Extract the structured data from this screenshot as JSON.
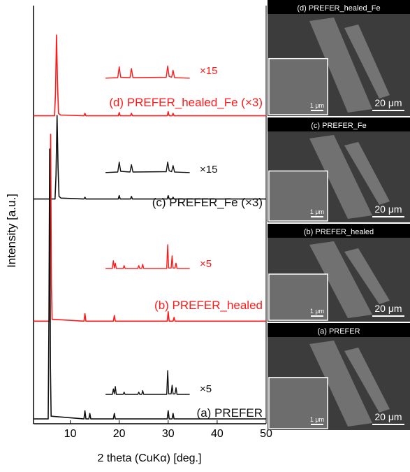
{
  "axes": {
    "xlabel": "2 theta (CuKα) [deg.]",
    "ylabel": "Intensity [a.u.]",
    "xlim": [
      2.5,
      50
    ],
    "xticks": [
      10,
      20,
      30,
      40,
      50
    ]
  },
  "chart_data": [
    {
      "type": "line",
      "name": "(d) PREFER_healed_Fe (×3)",
      "color": "#ff1a1a",
      "ylim": [
        0,
        100
      ],
      "x": [
        2.5,
        6.8,
        7.0,
        7.2,
        7.4,
        7.6,
        8.0,
        12.8,
        13.0,
        13.2,
        19.8,
        20.0,
        20.2,
        22.3,
        22.5,
        22.7,
        29.8,
        30.0,
        30.2,
        30.8,
        31.0,
        31.2,
        50
      ],
      "values": [
        2,
        2,
        30,
        100,
        40,
        5,
        3,
        2,
        5,
        2,
        2,
        6,
        2,
        2,
        5,
        2,
        2,
        7,
        2,
        2,
        5,
        2,
        2
      ],
      "inset": {
        "label": "×15",
        "ylim": [
          0,
          100
        ],
        "x": [
          17.2,
          19.7,
          20.0,
          20.3,
          22.2,
          22.5,
          22.8,
          29.6,
          29.9,
          30.2,
          30.7,
          31.0,
          31.3,
          34.4
        ],
        "values": [
          5,
          8,
          70,
          10,
          8,
          60,
          8,
          10,
          75,
          15,
          10,
          50,
          8,
          5
        ]
      }
    },
    {
      "type": "line",
      "name": "(c) PREFER_Fe (×3)",
      "color": "#111111",
      "ylim": [
        0,
        100
      ],
      "x": [
        2.5,
        6.9,
        7.1,
        7.3,
        7.5,
        7.7,
        8.1,
        12.8,
        13.0,
        13.2,
        19.8,
        20.0,
        20.2,
        22.3,
        22.5,
        22.7,
        29.8,
        30.0,
        30.2,
        30.8,
        31.0,
        31.2,
        50
      ],
      "values": [
        2,
        2,
        30,
        100,
        40,
        5,
        3,
        2,
        4,
        2,
        2,
        6,
        2,
        2,
        5,
        2,
        2,
        6,
        2,
        2,
        4,
        2,
        2
      ],
      "inset": {
        "label": "×15",
        "ylim": [
          0,
          100
        ],
        "x": [
          17.2,
          19.7,
          20.0,
          20.3,
          22.2,
          22.5,
          22.8,
          29.6,
          29.9,
          30.2,
          30.7,
          31.0,
          31.3,
          34.4
        ],
        "values": [
          5,
          8,
          65,
          12,
          8,
          50,
          8,
          10,
          65,
          15,
          10,
          45,
          8,
          5
        ]
      }
    },
    {
      "type": "line",
      "name": "(b) PREFER_healed",
      "color": "#ff1a1a",
      "ylim": [
        0,
        100
      ],
      "x": [
        2.5,
        5.7,
        5.85,
        6.0,
        6.15,
        6.3,
        12.8,
        13.0,
        13.2,
        18.8,
        19.0,
        19.2,
        29.8,
        30.0,
        30.2,
        31.0,
        31.2,
        31.4,
        50
      ],
      "values": [
        1,
        1,
        40,
        100,
        20,
        2,
        1,
        5,
        1,
        1,
        4,
        1,
        1,
        6,
        1,
        1,
        3,
        1,
        1
      ],
      "inset": {
        "label": "×5",
        "ylim": [
          0,
          100
        ],
        "x": [
          17.2,
          18.6,
          18.8,
          19.0,
          19.2,
          19.4,
          20.8,
          21.0,
          21.2,
          23.8,
          24.0,
          24.2,
          24.6,
          24.8,
          25.0,
          29.7,
          29.9,
          30.1,
          30.6,
          30.8,
          31.0,
          31.4,
          31.6,
          31.8,
          34.4
        ],
        "values": [
          3,
          3,
          35,
          5,
          25,
          3,
          3,
          15,
          3,
          3,
          15,
          3,
          3,
          20,
          3,
          3,
          100,
          5,
          5,
          55,
          5,
          5,
          25,
          3,
          3
        ]
      }
    },
    {
      "type": "line",
      "name": "(a) PREFER",
      "color": "#111111",
      "ylim": [
        0,
        100
      ],
      "x": [
        2.5,
        5.5,
        5.65,
        5.8,
        5.95,
        6.1,
        12.8,
        13.0,
        13.2,
        13.8,
        14.0,
        14.2,
        18.8,
        19.0,
        19.2,
        29.8,
        30.0,
        30.2,
        30.8,
        31.0,
        31.2,
        50
      ],
      "values": [
        1,
        1,
        40,
        100,
        20,
        2,
        1,
        4,
        1,
        1,
        3,
        1,
        1,
        3,
        1,
        1,
        4,
        1,
        1,
        3,
        1,
        1
      ],
      "inset": {
        "label": "×5",
        "ylim": [
          0,
          100
        ],
        "x": [
          17.2,
          18.6,
          18.8,
          19.0,
          19.2,
          19.4,
          20.8,
          21.0,
          21.2,
          23.8,
          24.0,
          24.2,
          24.6,
          24.8,
          25.0,
          29.7,
          29.9,
          30.1,
          30.6,
          30.8,
          31.0,
          31.4,
          31.6,
          31.8,
          34.4
        ],
        "values": [
          3,
          3,
          25,
          5,
          35,
          3,
          3,
          12,
          3,
          3,
          12,
          3,
          3,
          18,
          3,
          3,
          100,
          5,
          5,
          40,
          5,
          5,
          30,
          3,
          3
        ]
      }
    }
  ],
  "images": [
    {
      "title": "(d) PREFER_healed_Fe",
      "scale": "20 μm",
      "inset_scale": "1 μm"
    },
    {
      "title": "(c) PREFER_Fe",
      "scale": "20 μm",
      "inset_scale": "1 μm"
    },
    {
      "title": "(b) PREFER_healed",
      "scale": "20 μm",
      "inset_scale": "1 μm"
    },
    {
      "title": "(a) PREFER",
      "scale": "20 μm",
      "inset_scale": "1 μm"
    }
  ]
}
